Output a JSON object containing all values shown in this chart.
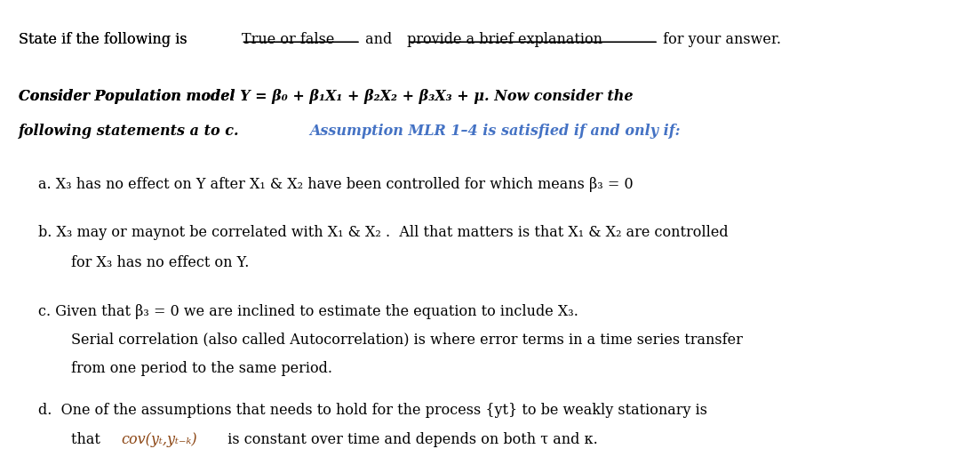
{
  "bg_color": "#ffffff",
  "fig_width": 10.86,
  "fig_height": 5.06,
  "line1": "State if the following is ",
  "line1_underline1": "True or false",
  "line1_mid": " and ",
  "line1_underline2": "provide a brief explanation",
  "line1_end": " for your answer.",
  "bold_italic_line1": "Consider Population model",
  "bold_italic_line1b": " Y",
  "bold_eq": " = β₀ + β₁X₁ + β₂X₂ + β₃X₃ + μ.",
  "bold_rest": " Now consider the",
  "bold_line2": "following statements a to c. ",
  "blue_text": "Assumption MLR 1–4 is satisfied if and only if:",
  "a_line": "a. X₃ has no effect on Y after X₁ & X₂ have been controlled for which means β₃ = 0",
  "b_line1": "b. X₃ may or maynot be correlated with X₁ & X₂ .  All that matters is that X₁ & X₂ are controlled",
  "b_line2": "    for X₃ has no effect on Y.",
  "c_line1": "c. Given that β₃ = 0 we are inclined to estimate the equation to include X₃.",
  "c_line2": "    Serial correlation (also called Autocorrelation) is where error terms in a time series transfer",
  "c_line3": "    from one period to the same period.",
  "d_line1": "d.  One of the assumptions that needs to hold for the process {yt} to be weakly stationary is",
  "d_line2": "     that  cov(yₜ,yₜ₋ₖ)  is constant over time and depends on both t and k.",
  "text_color": "#000000",
  "blue_color": "#4472C4",
  "brown_color": "#8B4513"
}
